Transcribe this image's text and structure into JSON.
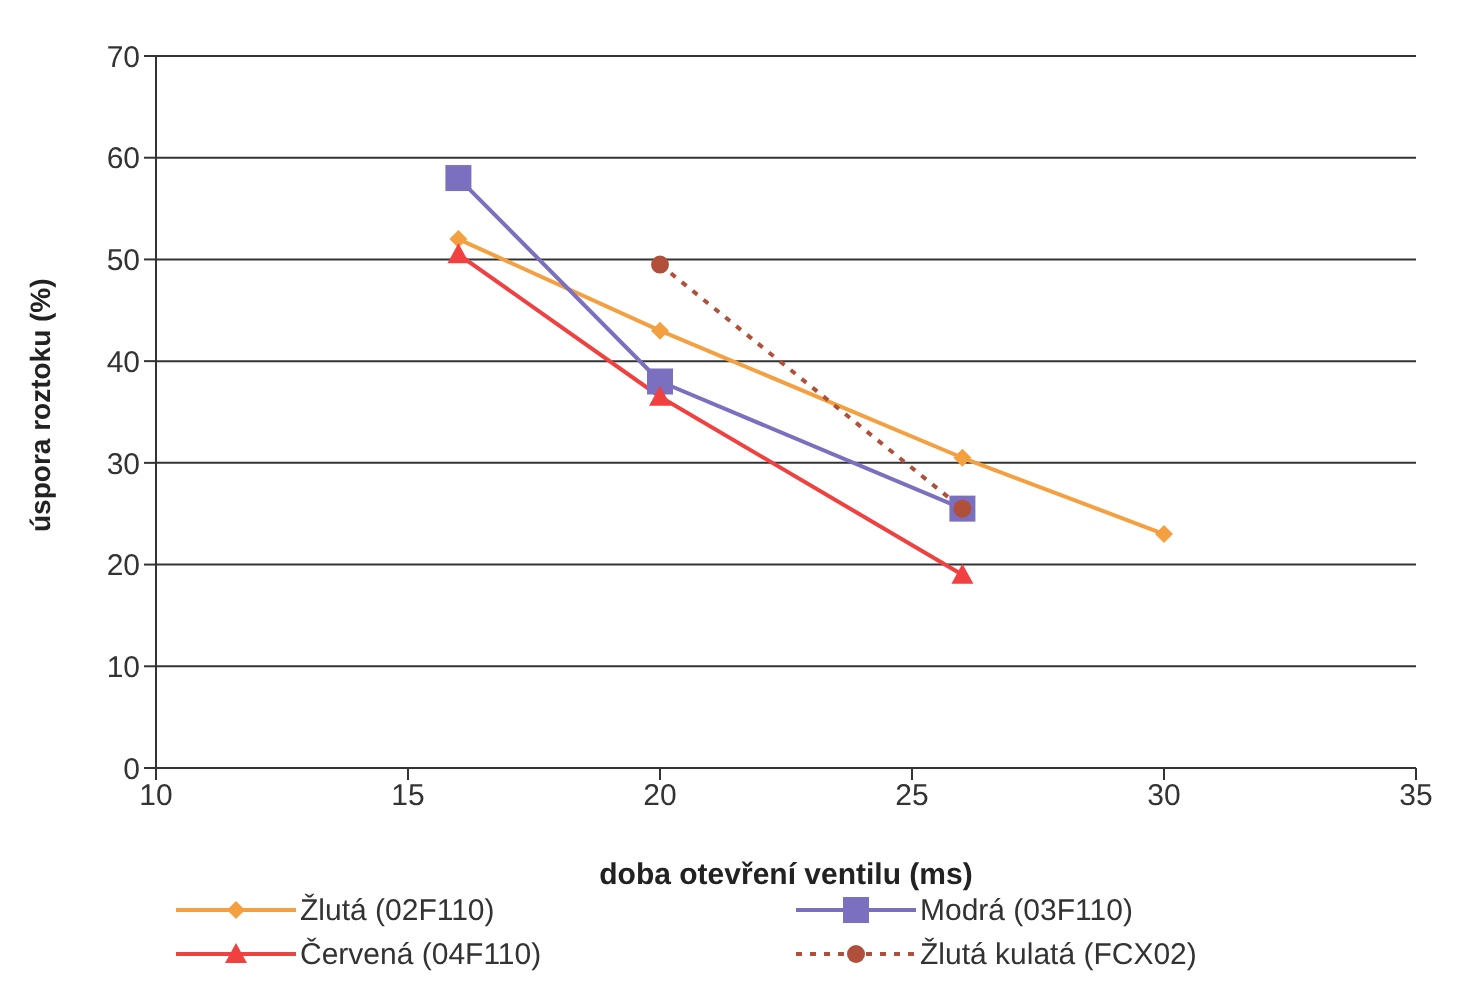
{
  "chart_data": {
    "type": "line",
    "xlabel": "doba otevření ventilu (ms)",
    "ylabel": "úspora roztoku (%)",
    "xlim": [
      10,
      35
    ],
    "xticks": [
      10,
      15,
      20,
      25,
      30,
      35
    ],
    "ylim": [
      0,
      70
    ],
    "yticks": [
      0,
      10,
      20,
      30,
      40,
      50,
      60,
      70
    ],
    "grid": "y",
    "legend": "bottom",
    "series": [
      {
        "name": "Žlutá (02F110)",
        "color": "#f5a040",
        "marker": "diamond",
        "line_style": "solid",
        "x": [
          16,
          20,
          26,
          30
        ],
        "values": [
          52,
          43,
          30.5,
          23
        ]
      },
      {
        "name": "Modrá (03F110)",
        "color": "#7b6fc0",
        "marker": "square",
        "line_style": "solid",
        "x": [
          16,
          20,
          26
        ],
        "values": [
          58,
          38,
          25.5
        ]
      },
      {
        "name": "Červená (04F110)",
        "color": "#f04040",
        "marker": "triangle",
        "line_style": "solid",
        "x": [
          16,
          20,
          26
        ],
        "values": [
          50.5,
          36.5,
          19
        ]
      },
      {
        "name": "Žlutá kulatá (FCX02)",
        "color": "#b0503a",
        "marker": "circle",
        "line_style": "dotted",
        "x": [
          20,
          26
        ],
        "values": [
          49.5,
          25.5
        ]
      }
    ]
  }
}
